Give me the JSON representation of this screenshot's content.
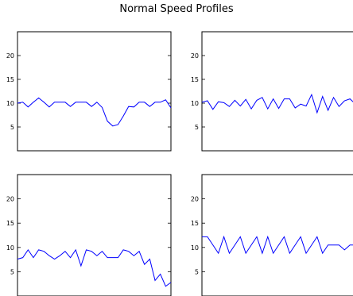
{
  "chart_data": {
    "title": "Normal Speed Profiles",
    "subplots": [
      {
        "type": "line",
        "yticks": [
          5,
          10,
          15,
          20
        ],
        "ylim": [
          0,
          25
        ],
        "xlim": [
          0,
          29
        ],
        "grid": false,
        "series": [
          {
            "color": "#0000ff",
            "x": [
              0,
              1,
              2,
              3,
              4,
              5,
              6,
              7,
              8,
              9,
              10,
              11,
              12,
              13,
              14,
              15,
              16,
              17,
              18,
              19,
              20,
              21,
              22,
              23,
              24,
              25,
              26,
              27,
              28,
              29
            ],
            "y": [
              10,
              10.2,
              9.2,
              10.2,
              11.1,
              10.2,
              9.2,
              10.2,
              10.2,
              10.2,
              9.3,
              10.2,
              10.2,
              10.2,
              9.3,
              10.2,
              9.1,
              6.2,
              5.2,
              5.5,
              7.3,
              9.3,
              9.2,
              10.2,
              10.2,
              9.3,
              10.2,
              10.2,
              10.7,
              9.0
            ]
          }
        ]
      },
      {
        "type": "line",
        "yticks": [
          5,
          10,
          15,
          20
        ],
        "ylim": [
          0,
          25
        ],
        "xlim": [
          0,
          29
        ],
        "grid": false,
        "series": [
          {
            "color": "#0000ff",
            "x": [
              0,
              1,
              2,
              3,
              4,
              5,
              6,
              7,
              8,
              9,
              10,
              11,
              12,
              13,
              14,
              15,
              16,
              17,
              18,
              19,
              20,
              21,
              22,
              23,
              24,
              25,
              26,
              27,
              28,
              29
            ],
            "y": [
              10.2,
              10.5,
              8.7,
              10.3,
              10.1,
              9.3,
              10.6,
              9.4,
              10.8,
              8.8,
              10.6,
              11.2,
              8.8,
              10.9,
              8.9,
              10.9,
              10.9,
              9.0,
              9.8,
              9.4,
              11.8,
              8.0,
              11.4,
              8.5,
              11.2,
              9.3,
              10.5,
              10.9,
              9.8,
              9.8
            ]
          }
        ]
      },
      {
        "type": "line",
        "yticks": [
          5,
          10,
          15,
          20
        ],
        "ylim": [
          0,
          25
        ],
        "xlim": [
          0,
          29
        ],
        "grid": false,
        "series": [
          {
            "color": "#0000ff",
            "x": [
              0,
              1,
              2,
              3,
              4,
              5,
              6,
              7,
              8,
              9,
              10,
              11,
              12,
              13,
              14,
              15,
              16,
              17,
              18,
              19,
              20,
              21,
              22,
              23,
              24,
              25,
              26,
              27,
              28,
              29
            ],
            "y": [
              7.6,
              7.9,
              9.5,
              7.9,
              9.5,
              9.2,
              8.3,
              7.6,
              8.3,
              9.2,
              7.9,
              9.5,
              6.2,
              9.5,
              9.2,
              8.3,
              9.2,
              7.9,
              7.9,
              7.9,
              9.5,
              9.2,
              8.3,
              9.2,
              6.5,
              7.6,
              3.2,
              4.5,
              2.0,
              2.8
            ]
          }
        ]
      },
      {
        "type": "line",
        "yticks": [
          5,
          10,
          15,
          20
        ],
        "ylim": [
          0,
          25
        ],
        "xlim": [
          0,
          29
        ],
        "grid": false,
        "series": [
          {
            "color": "#0000ff",
            "x": [
              0,
              1,
              2,
              3,
              4,
              5,
              6,
              7,
              8,
              9,
              10,
              11,
              12,
              13,
              14,
              15,
              16,
              17,
              18,
              19,
              20,
              21,
              22,
              23,
              24,
              25,
              26,
              27,
              28,
              29
            ],
            "y": [
              12.2,
              12.2,
              10.5,
              8.8,
              12.2,
              8.8,
              10.5,
              12.2,
              8.8,
              10.5,
              12.2,
              8.8,
              12.2,
              8.8,
              10.5,
              12.2,
              8.8,
              10.5,
              12.2,
              8.8,
              10.5,
              12.2,
              8.8,
              10.5,
              10.5,
              10.5,
              9.5,
              10.5,
              10.5,
              10.5
            ]
          }
        ]
      }
    ]
  }
}
